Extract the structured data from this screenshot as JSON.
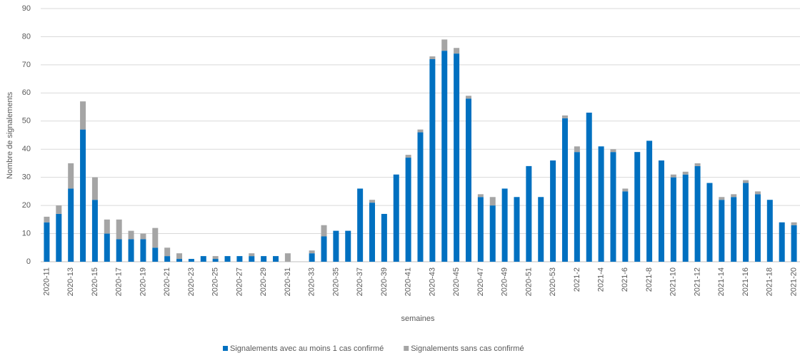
{
  "chart_data": {
    "type": "stacked-bar",
    "xlabel": "semaines",
    "ylabel": "Nombre de signalements",
    "categories": [
      "2020-11",
      null,
      "2020-13",
      null,
      "2020-15",
      null,
      "2020-17",
      null,
      "2020-19",
      null,
      "2020-21",
      null,
      "2020-23",
      null,
      "2020-25",
      null,
      "2020-27",
      null,
      "2020-29",
      null,
      "2020-31",
      null,
      "2020-33",
      null,
      "2020-35",
      null,
      "2020-37",
      null,
      "2020-39",
      null,
      "2020-41",
      null,
      "2020-43",
      null,
      "2020-45",
      null,
      "2020-47",
      null,
      "2020-49",
      null,
      "2020-51",
      null,
      "2020-53",
      null,
      "2021-2",
      null,
      "2021-4",
      null,
      "2021-6",
      null,
      "2021-8",
      null,
      "2021-10",
      null,
      "2021-12",
      null,
      "2021-14",
      null,
      "2021-16",
      null,
      "2021-18",
      null,
      "2021-20"
    ],
    "series": [
      {
        "name": "Signalements avec au moins 1 cas confirmé",
        "color": "#0070c0",
        "values": [
          14,
          17,
          26,
          47,
          22,
          10,
          8,
          8,
          8,
          5,
          2,
          1,
          1,
          2,
          1,
          2,
          2,
          2,
          2,
          2,
          0,
          0,
          3,
          9,
          11,
          11,
          26,
          21,
          17,
          31,
          37,
          46,
          72,
          75,
          74,
          58,
          23,
          20,
          26,
          23,
          34,
          23,
          36,
          51,
          39,
          53,
          41,
          39,
          25,
          39,
          43,
          36,
          30,
          31,
          34,
          28,
          22,
          23,
          28,
          24,
          22,
          14,
          13
        ]
      },
      {
        "name": "Signalements sans cas confirmé",
        "color": "#a5a5a5",
        "values": [
          2,
          3,
          9,
          10,
          8,
          5,
          7,
          3,
          2,
          7,
          3,
          2,
          0,
          0,
          1,
          0,
          0,
          1,
          0,
          0,
          3,
          0,
          1,
          4,
          0,
          0,
          0,
          1,
          0,
          0,
          1,
          1,
          1,
          4,
          2,
          1,
          1,
          3,
          0,
          0,
          0,
          0,
          0,
          1,
          2,
          0,
          0,
          1,
          1,
          0,
          0,
          0,
          1,
          1,
          1,
          0,
          1,
          1,
          1,
          1,
          0,
          0,
          1
        ]
      }
    ],
    "ylim": [
      0,
      90
    ],
    "yticks": [
      0,
      10,
      20,
      30,
      40,
      50,
      60,
      70,
      80,
      90
    ],
    "grid": true
  }
}
